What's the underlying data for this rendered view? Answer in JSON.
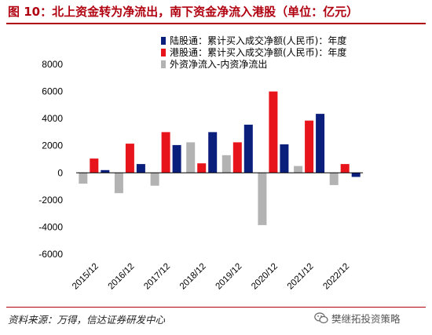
{
  "header": {
    "title": "图 10：北上资金转为净流出，南下资金净流入港股（单位：亿元）"
  },
  "footer": {
    "source": "资料来源：万得，信达证券研发中心",
    "watermark": "樊继拓投资策略",
    "watermark_icon": "wechat-icon"
  },
  "colors": {
    "accent": "#b00010",
    "series_blue": "#0a1e7c",
    "series_red": "#e8141c",
    "series_gray": "#b3b3b3"
  },
  "chart_data": {
    "type": "bar",
    "categories": [
      "2015/12",
      "2016/12",
      "2017/12",
      "2018/12",
      "2019/12",
      "2020/12",
      "2021/12",
      "2022/12"
    ],
    "series": [
      {
        "name": "外资净流入-内资净流出",
        "color": "#b3b3b3",
        "values": [
          -800,
          -1500,
          -950,
          2250,
          1300,
          -3850,
          500,
          -900
        ]
      },
      {
        "name": "港股通：累计买入成交净额(人民币)：年度",
        "color": "#e8141c",
        "values": [
          1050,
          2150,
          3000,
          700,
          2250,
          6000,
          3850,
          650
        ]
      },
      {
        "name": "陆股通：累计买入成交净额(人民币)：年度",
        "color": "#0a1e7c",
        "values": [
          200,
          650,
          2050,
          3000,
          3550,
          2100,
          4350,
          -300
        ]
      }
    ],
    "legend_order": [
      2,
      1,
      0
    ],
    "yticks": [
      -6000,
      -4000,
      -2000,
      0,
      2000,
      4000,
      6000,
      8000
    ],
    "ylim": [
      -6000,
      8000
    ],
    "legend_position": "top-right",
    "grid": false
  }
}
